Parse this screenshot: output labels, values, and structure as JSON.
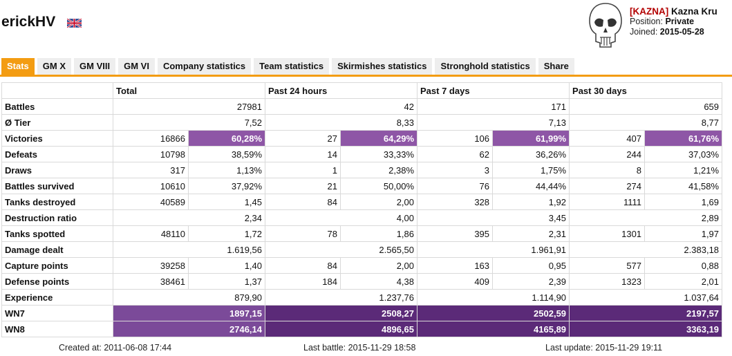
{
  "player": {
    "name": "erickHV",
    "flag_icon": "uk-flag-icon"
  },
  "clan": {
    "tag": "[KAZNA]",
    "name": "Kazna Kru",
    "position_label": "Position:",
    "position": "Private",
    "joined_label": "Joined:",
    "joined": "2015-05-28",
    "logo_icon": "skull-icon"
  },
  "tabs": [
    {
      "label": "Stats",
      "active": true
    },
    {
      "label": "GM X"
    },
    {
      "label": "GM VIII"
    },
    {
      "label": "GM VI"
    },
    {
      "label": "Company statistics"
    },
    {
      "label": "Team statistics"
    },
    {
      "label": "Skirmishes statistics"
    },
    {
      "label": "Stronghold statistics"
    },
    {
      "label": "Share"
    }
  ],
  "table": {
    "headers": [
      "",
      "Total",
      "Past 24 hours",
      "Past 7 days",
      "Past 30 days"
    ],
    "rows": [
      {
        "label": "Battles",
        "cols": [
          [
            "",
            "27981"
          ],
          [
            "",
            "42"
          ],
          [
            "",
            "171"
          ],
          [
            "",
            "659"
          ]
        ]
      },
      {
        "label": "Ø Tier",
        "cols": [
          [
            "",
            "7,52"
          ],
          [
            "",
            "8,33"
          ],
          [
            "",
            "7,13"
          ],
          [
            "",
            "8,77"
          ]
        ]
      },
      {
        "label": "Victories",
        "highlight": true,
        "cols": [
          [
            "16866",
            "60,28%"
          ],
          [
            "27",
            "64,29%"
          ],
          [
            "106",
            "61,99%"
          ],
          [
            "407",
            "61,76%"
          ]
        ]
      },
      {
        "label": "Defeats",
        "cols": [
          [
            "10798",
            "38,59%"
          ],
          [
            "14",
            "33,33%"
          ],
          [
            "62",
            "36,26%"
          ],
          [
            "244",
            "37,03%"
          ]
        ]
      },
      {
        "label": "Draws",
        "cols": [
          [
            "317",
            "1,13%"
          ],
          [
            "1",
            "2,38%"
          ],
          [
            "3",
            "1,75%"
          ],
          [
            "8",
            "1,21%"
          ]
        ]
      },
      {
        "label": "Battles survived",
        "cols": [
          [
            "10610",
            "37,92%"
          ],
          [
            "21",
            "50,00%"
          ],
          [
            "76",
            "44,44%"
          ],
          [
            "274",
            "41,58%"
          ]
        ]
      },
      {
        "label": "Tanks destroyed",
        "cols": [
          [
            "40589",
            "1,45"
          ],
          [
            "84",
            "2,00"
          ],
          [
            "328",
            "1,92"
          ],
          [
            "1111",
            "1,69"
          ]
        ]
      },
      {
        "label": "Destruction ratio",
        "cols": [
          [
            "",
            "2,34"
          ],
          [
            "",
            "4,00"
          ],
          [
            "",
            "3,45"
          ],
          [
            "",
            "2,89"
          ]
        ]
      },
      {
        "label": "Tanks spotted",
        "cols": [
          [
            "48110",
            "1,72"
          ],
          [
            "78",
            "1,86"
          ],
          [
            "395",
            "2,31"
          ],
          [
            "1301",
            "1,97"
          ]
        ]
      },
      {
        "label": "Damage dealt",
        "cols": [
          [
            "",
            "1.619,56"
          ],
          [
            "",
            "2.565,50"
          ],
          [
            "",
            "1.961,91"
          ],
          [
            "",
            "2.383,18"
          ]
        ]
      },
      {
        "label": "Capture points",
        "cols": [
          [
            "39258",
            "1,40"
          ],
          [
            "84",
            "2,00"
          ],
          [
            "163",
            "0,95"
          ],
          [
            "577",
            "0,88"
          ]
        ]
      },
      {
        "label": "Defense points",
        "cols": [
          [
            "38461",
            "1,37"
          ],
          [
            "184",
            "4,38"
          ],
          [
            "409",
            "2,39"
          ],
          [
            "1323",
            "2,01"
          ]
        ]
      },
      {
        "label": "Experience",
        "cols": [
          [
            "",
            "879,90"
          ],
          [
            "",
            "1.237,76"
          ],
          [
            "",
            "1.114,90"
          ],
          [
            "",
            "1.037,64"
          ]
        ]
      },
      {
        "label": "WN7",
        "wn": true,
        "cols": [
          [
            "",
            "1897,15"
          ],
          [
            "",
            "2508,27"
          ],
          [
            "",
            "2502,59"
          ],
          [
            "",
            "2197,57"
          ]
        ]
      },
      {
        "label": "WN8",
        "wn": true,
        "cols": [
          [
            "",
            "2746,14"
          ],
          [
            "",
            "4896,65"
          ],
          [
            "",
            "4165,89"
          ],
          [
            "",
            "3363,19"
          ]
        ]
      }
    ]
  },
  "footer": {
    "created_label": "Created at:",
    "created": "2011-06-08 17:44",
    "last_battle_label": "Last battle:",
    "last_battle": "2015-11-29 18:58",
    "last_update_label": "Last update:",
    "last_update": "2015-11-29 19:11"
  },
  "colors": {
    "accent": "#f39c12",
    "highlight": "#8e56a6",
    "wn_total": "#7b4a99",
    "wn_dark": "#5b2a78"
  }
}
